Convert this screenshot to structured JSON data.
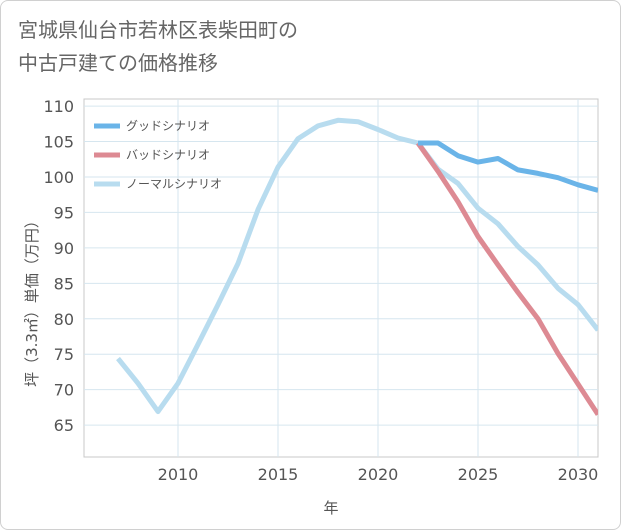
{
  "title": {
    "line1": "宮城県仙台市若林区表柴田町の",
    "line2": "中古戸建ての価格推移"
  },
  "chart_data": {
    "type": "line",
    "xlabel": "年",
    "ylabel": "坪（3.3㎡）単価（万円）",
    "xlim": [
      2005.3,
      2031
    ],
    "ylim": [
      60.5,
      111
    ],
    "xticks": [
      2010,
      2015,
      2020,
      2025,
      2030
    ],
    "yticks": [
      65,
      70,
      75,
      80,
      85,
      90,
      95,
      100,
      105,
      110
    ],
    "grid": true,
    "legend_position": "top-left",
    "series": [
      {
        "name": "グッドシナリオ",
        "color": "#6ab4e8",
        "x": [
          2022,
          2023,
          2024,
          2025,
          2026,
          2027,
          2028,
          2029,
          2030,
          2031
        ],
        "values": [
          104.8,
          104.8,
          103.0,
          102.1,
          102.6,
          101.0,
          100.5,
          99.9,
          98.9,
          98.1
        ]
      },
      {
        "name": "バッドシナリオ",
        "color": "#dd8a93",
        "x": [
          2022,
          2023,
          2024,
          2025,
          2026,
          2027,
          2028,
          2029,
          2030,
          2031
        ],
        "values": [
          104.8,
          100.8,
          96.5,
          91.6,
          87.6,
          83.7,
          80.0,
          75.1,
          70.8,
          66.5
        ]
      },
      {
        "name": "ノーマルシナリオ",
        "color": "#b8dcef",
        "x": [
          2007,
          2008,
          2009,
          2010,
          2011,
          2012,
          2013,
          2014,
          2015,
          2016,
          2017,
          2018,
          2019,
          2020,
          2021,
          2022,
          2023,
          2024,
          2025,
          2026,
          2027,
          2028,
          2029,
          2030,
          2031
        ],
        "values": [
          74.4,
          70.9,
          66.9,
          70.9,
          76.4,
          82.0,
          87.8,
          95.4,
          101.4,
          105.4,
          107.2,
          108.0,
          107.8,
          106.7,
          105.5,
          104.8,
          101.1,
          99.1,
          95.6,
          93.4,
          90.2,
          87.6,
          84.3,
          82.0,
          78.4
        ]
      }
    ]
  }
}
